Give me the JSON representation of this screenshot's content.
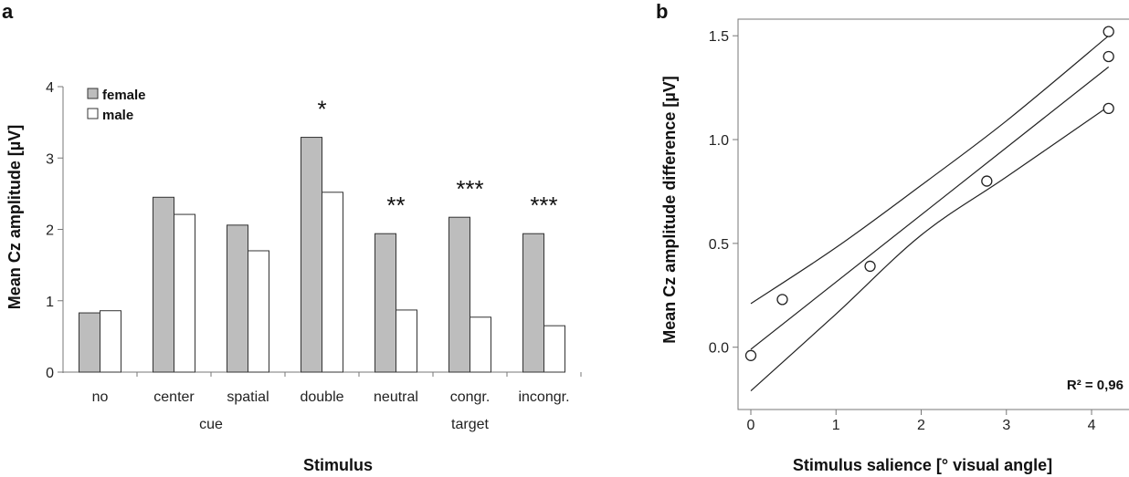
{
  "chart_data": [
    {
      "panel": "a",
      "type": "bar",
      "ylabel": "Mean Cz  amplitude [µV]",
      "xlabel": "Stimulus",
      "ylim": [
        0,
        4
      ],
      "yticks": [
        "0",
        "1",
        "2",
        "3",
        "4"
      ],
      "categories": [
        "no",
        "center",
        "spatial",
        "double",
        "neutral",
        "congr.",
        "incongr."
      ],
      "groups": [
        {
          "label": "cue",
          "categories": [
            "no",
            "center",
            "spatial",
            "double"
          ]
        },
        {
          "label": "target",
          "categories": [
            "neutral",
            "congr.",
            "incongr."
          ]
        }
      ],
      "series": [
        {
          "name": "female",
          "color": "#bdbdbd",
          "values": [
            0.83,
            2.45,
            2.06,
            3.29,
            1.94,
            2.17,
            1.94
          ]
        },
        {
          "name": "male",
          "color": "#ffffff",
          "values": [
            0.86,
            2.21,
            1.7,
            2.52,
            0.87,
            0.77,
            0.65
          ]
        }
      ],
      "annotations": [
        "",
        "",
        "",
        "*",
        "**",
        "***",
        "***"
      ],
      "legend": "top-left"
    },
    {
      "panel": "b",
      "type": "scatter",
      "xlabel": "Stimulus salience [° visual angle]",
      "ylabel": "Mean Cz amplitude difference [µV]",
      "xlim": [
        -0.15,
        4.45
      ],
      "ylim": [
        -0.3,
        1.58
      ],
      "xticks": [
        "0",
        "1",
        "2",
        "3",
        "4"
      ],
      "yticks": [
        "0.0",
        "0.5",
        "1.0",
        "1.5"
      ],
      "points": [
        {
          "x": 0.0,
          "y": -0.04
        },
        {
          "x": 0.37,
          "y": 0.23
        },
        {
          "x": 1.4,
          "y": 0.39
        },
        {
          "x": 2.77,
          "y": 0.8
        },
        {
          "x": 4.2,
          "y": 1.15
        },
        {
          "x": 4.2,
          "y": 1.4
        },
        {
          "x": 4.2,
          "y": 1.52
        }
      ],
      "fit": {
        "x": [
          0.0,
          4.2
        ],
        "y": [
          -0.01,
          1.35
        ]
      },
      "ci_upper": {
        "x": [
          0.0,
          1.0,
          2.0,
          3.0,
          4.2
        ],
        "y": [
          0.21,
          0.48,
          0.78,
          1.09,
          1.5
        ]
      },
      "ci_lower": {
        "x": [
          0.0,
          1.0,
          2.0,
          3.0,
          4.2
        ],
        "y": [
          -0.21,
          0.16,
          0.54,
          0.82,
          1.16
        ]
      },
      "annotation": "R² = 0,96"
    }
  ]
}
